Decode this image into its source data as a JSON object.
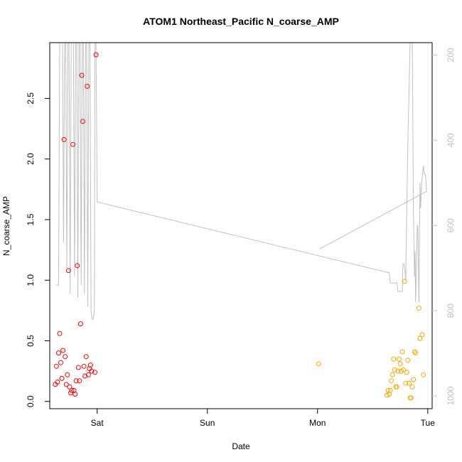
{
  "chart_data": {
    "type": "scatter",
    "title": "ATOM1 Northeast_Pacific N_coarse_AMP",
    "xlabel": "Date",
    "ylabel": "N_coarse_AMP",
    "x_ticks": [
      {
        "label": "Sat",
        "x": 1.0
      },
      {
        "label": "Sun",
        "x": 2.0
      },
      {
        "label": "Mon",
        "x": 3.0
      },
      {
        "label": "Tue",
        "x": 4.0
      }
    ],
    "xlim": [
      0.57,
      4.04
    ],
    "ylim": [
      -0.06,
      2.96
    ],
    "y_ticks": [
      0.0,
      0.5,
      1.0,
      1.5,
      2.0,
      2.5
    ],
    "y_tick_labels": [
      "0.0",
      "0.5",
      "1.0",
      "1.5",
      "2.0",
      "2.5"
    ],
    "right_axis": {
      "ylim": [
        1030,
        171
      ],
      "ticks": [
        200,
        400,
        600,
        800,
        1000
      ],
      "tick_labels": [
        "200",
        "400",
        "600",
        "800",
        "1000"
      ],
      "color": "#c0c0c0"
    },
    "series": [
      {
        "color": "#ff0000",
        "points": [
          {
            "x": 0.62,
            "y": 0.14
          },
          {
            "x": 0.63,
            "y": 0.29
          },
          {
            "x": 0.64,
            "y": 0.16
          },
          {
            "x": 0.65,
            "y": 0.4
          },
          {
            "x": 0.66,
            "y": 0.56
          },
          {
            "x": 0.67,
            "y": 0.32
          },
          {
            "x": 0.68,
            "y": 0.19
          },
          {
            "x": 0.69,
            "y": 0.42
          },
          {
            "x": 0.7,
            "y": 2.16
          },
          {
            "x": 0.71,
            "y": 0.37
          },
          {
            "x": 0.72,
            "y": 0.14
          },
          {
            "x": 0.73,
            "y": 0.22
          },
          {
            "x": 0.74,
            "y": 1.08
          },
          {
            "x": 0.75,
            "y": 0.12
          },
          {
            "x": 0.76,
            "y": 0.07
          },
          {
            "x": 0.77,
            "y": 0.09
          },
          {
            "x": 0.78,
            "y": 2.12
          },
          {
            "x": 0.79,
            "y": 0.09
          },
          {
            "x": 0.8,
            "y": 0.06
          },
          {
            "x": 0.81,
            "y": 0.17
          },
          {
            "x": 0.82,
            "y": 1.12
          },
          {
            "x": 0.83,
            "y": 0.28
          },
          {
            "x": 0.84,
            "y": 0.17
          },
          {
            "x": 0.85,
            "y": 0.64
          },
          {
            "x": 0.86,
            "y": 2.69
          },
          {
            "x": 0.87,
            "y": 2.31
          },
          {
            "x": 0.88,
            "y": 0.29
          },
          {
            "x": 0.89,
            "y": 0.21
          },
          {
            "x": 0.9,
            "y": 0.37
          },
          {
            "x": 0.91,
            "y": 2.6
          },
          {
            "x": 0.92,
            "y": 0.22
          },
          {
            "x": 0.93,
            "y": 0.27
          },
          {
            "x": 0.94,
            "y": 0.3
          },
          {
            "x": 0.95,
            "y": 0.25
          },
          {
            "x": 0.98,
            "y": 0.24
          },
          {
            "x": 0.99,
            "y": 2.86
          }
        ]
      },
      {
        "color": "#ffa500",
        "points": [
          {
            "x": 3.01,
            "y": 0.31
          },
          {
            "x": 3.63,
            "y": 0.05
          },
          {
            "x": 3.64,
            "y": 0.09
          },
          {
            "x": 3.65,
            "y": 0.06
          },
          {
            "x": 3.66,
            "y": 0.09
          },
          {
            "x": 3.67,
            "y": 0.17
          },
          {
            "x": 3.68,
            "y": 0.22
          },
          {
            "x": 3.69,
            "y": 0.35
          },
          {
            "x": 3.7,
            "y": 0.26
          },
          {
            "x": 3.71,
            "y": 0.12
          },
          {
            "x": 3.72,
            "y": 0.12
          },
          {
            "x": 3.73,
            "y": 0.25
          },
          {
            "x": 3.74,
            "y": 0.35
          },
          {
            "x": 3.75,
            "y": 0.31
          },
          {
            "x": 3.76,
            "y": 0.25
          },
          {
            "x": 3.77,
            "y": 0.41
          },
          {
            "x": 3.78,
            "y": 0.26
          },
          {
            "x": 3.79,
            "y": 0.99
          },
          {
            "x": 3.8,
            "y": 0.15
          },
          {
            "x": 3.81,
            "y": 0.24
          },
          {
            "x": 3.82,
            "y": 0.34
          },
          {
            "x": 3.83,
            "y": 0.15
          },
          {
            "x": 3.84,
            "y": 0.03
          },
          {
            "x": 3.85,
            "y": 0.03
          },
          {
            "x": 3.86,
            "y": 0.12
          },
          {
            "x": 3.87,
            "y": 0.18
          },
          {
            "x": 3.88,
            "y": 0.41
          },
          {
            "x": 3.89,
            "y": 0.4
          },
          {
            "x": 3.92,
            "y": 0.77
          },
          {
            "x": 3.93,
            "y": 0.52
          },
          {
            "x": 3.95,
            "y": 0.55
          },
          {
            "x": 3.96,
            "y": 0.22
          }
        ]
      }
    ],
    "line_series": {
      "color": "#c0c0c0",
      "axis": "right",
      "points": [
        [
          0.63,
          740
        ],
        [
          0.65,
          740
        ],
        [
          0.66,
          171
        ],
        [
          0.675,
          171
        ],
        [
          0.685,
          171
        ],
        [
          0.695,
          640
        ],
        [
          0.705,
          171
        ],
        [
          0.715,
          171
        ],
        [
          0.725,
          700
        ],
        [
          0.735,
          171
        ],
        [
          0.745,
          171
        ],
        [
          0.755,
          760
        ],
        [
          0.765,
          171
        ],
        [
          0.775,
          171
        ],
        [
          0.785,
          171
        ],
        [
          0.795,
          720
        ],
        [
          0.805,
          171
        ],
        [
          0.815,
          171
        ],
        [
          0.825,
          770
        ],
        [
          0.835,
          171
        ],
        [
          0.845,
          171
        ],
        [
          0.855,
          740
        ],
        [
          0.865,
          171
        ],
        [
          0.875,
          171
        ],
        [
          0.885,
          760
        ],
        [
          0.895,
          171
        ],
        [
          0.905,
          171
        ],
        [
          0.915,
          790
        ],
        [
          0.925,
          171
        ],
        [
          0.935,
          171
        ],
        [
          0.945,
          800
        ],
        [
          0.955,
          820
        ],
        [
          0.965,
          820
        ],
        [
          0.975,
          800
        ],
        [
          0.98,
          171
        ],
        [
          0.99,
          171
        ],
        [
          1.0,
          545
        ],
        [
          3.63,
          710
        ],
        [
          3.65,
          710
        ],
        [
          3.66,
          735
        ],
        [
          3.7,
          735
        ],
        [
          3.72,
          735
        ],
        [
          3.73,
          755
        ],
        [
          3.76,
          755
        ],
        [
          3.77,
          755
        ],
        [
          3.775,
          690
        ],
        [
          3.785,
          690
        ],
        [
          3.795,
          710
        ],
        [
          3.8,
          730
        ],
        [
          3.81,
          560
        ],
        [
          3.82,
          400
        ],
        [
          3.84,
          171
        ],
        [
          3.85,
          171
        ],
        [
          3.86,
          171
        ],
        [
          3.87,
          560
        ],
        [
          3.88,
          720
        ],
        [
          3.885,
          660
        ],
        [
          3.89,
          780
        ],
        [
          3.905,
          600
        ],
        [
          3.91,
          600
        ],
        [
          3.92,
          780
        ],
        [
          3.93,
          500
        ],
        [
          3.935,
          560
        ],
        [
          3.945,
          500
        ],
        [
          3.96,
          460
        ],
        [
          3.97,
          480
        ],
        [
          3.98,
          480
        ],
        [
          3.99,
          520
        ],
        [
          3.99,
          520
        ],
        [
          3.02,
          655
        ]
      ]
    },
    "grid": false,
    "legend": "none"
  }
}
